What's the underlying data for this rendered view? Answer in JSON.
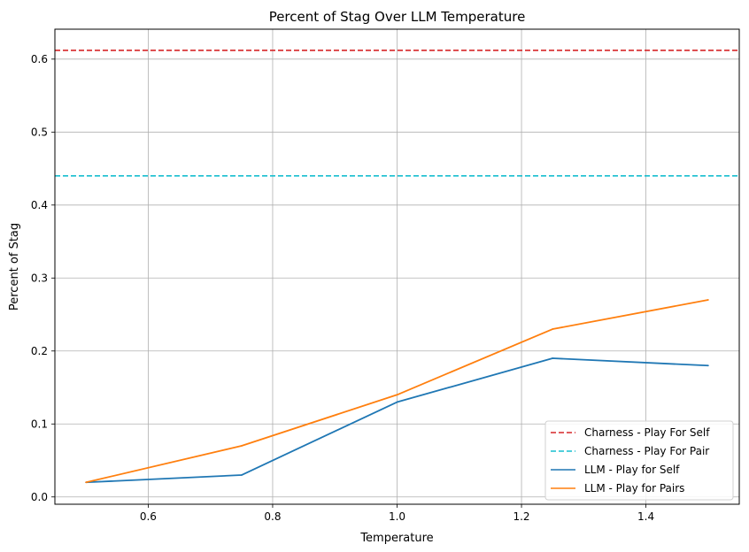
{
  "chart_data": {
    "type": "line",
    "title": "Percent of Stag Over LLM Temperature",
    "xlabel": "Temperature",
    "ylabel": "Percent of Stag",
    "xlim": [
      0.45,
      1.55
    ],
    "ylim": [
      -0.01,
      0.641
    ],
    "xticks": [
      0.6,
      0.8,
      1.0,
      1.2,
      1.4
    ],
    "xtick_labels": [
      "0.6",
      "0.8",
      "1.0",
      "1.2",
      "1.4"
    ],
    "yticks": [
      0.0,
      0.1,
      0.2,
      0.3,
      0.4,
      0.5,
      0.6
    ],
    "ytick_labels": [
      "0.0",
      "0.1",
      "0.2",
      "0.3",
      "0.4",
      "0.5",
      "0.6"
    ],
    "grid": true,
    "legend_position": "lower-right",
    "reference_lines": [
      {
        "name": "Charness - Play For Self",
        "y": 0.612,
        "color": "#d62728",
        "style": "dashed"
      },
      {
        "name": "Charness - Play For Pair",
        "y": 0.44,
        "color": "#17becf",
        "style": "dashed"
      }
    ],
    "x": [
      0.5,
      0.75,
      1.0,
      1.25,
      1.5
    ],
    "series": [
      {
        "name": "LLM - Play for Self",
        "color": "#1f77b4",
        "values": [
          0.02,
          0.03,
          0.13,
          0.19,
          0.18
        ]
      },
      {
        "name": "LLM - Play for Pairs",
        "color": "#ff7f0e",
        "values": [
          0.02,
          0.07,
          0.14,
          0.23,
          0.27
        ]
      }
    ]
  }
}
